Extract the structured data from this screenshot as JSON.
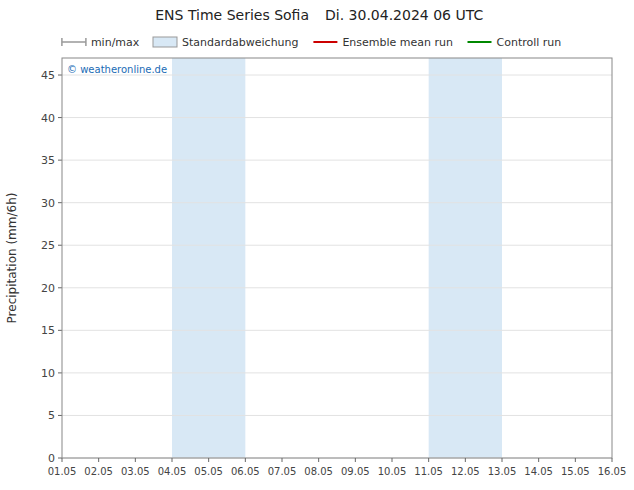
{
  "chart_data": {
    "type": "line",
    "title": "ENS Time Series Sofia",
    "subtitle": "Di. 30.04.2024 06 UTC",
    "y_label": "Precipitation (mm/6h)",
    "categories": [
      "01.05",
      "02.05",
      "03.05",
      "04.05",
      "05.05",
      "06.05",
      "07.05",
      "08.05",
      "09.05",
      "10.05",
      "11.05",
      "12.05",
      "13.05",
      "14.05",
      "15.05",
      "16.05"
    ],
    "xlim": [
      0,
      15
    ],
    "ylim": [
      0,
      47
    ],
    "yticks": [
      0,
      5,
      10,
      15,
      20,
      25,
      30,
      35,
      40,
      45
    ],
    "grid": true,
    "legend": "top",
    "shaded_regions": [
      {
        "x0": 3,
        "x1": 5,
        "color": "#d8e8f5"
      },
      {
        "x0": 10,
        "x1": 12,
        "color": "#d8e8f5"
      }
    ],
    "annotations": [
      {
        "text": "© weatheronline.de",
        "color": "#1a6bb5"
      }
    ],
    "series": [
      {
        "name": "min/max",
        "type": "range",
        "color": "#999999",
        "values": [
          null,
          null,
          null,
          null,
          null,
          null,
          null,
          null,
          null,
          null,
          null,
          null,
          null,
          null,
          null,
          null
        ]
      },
      {
        "name": "Standardabweichung",
        "type": "area",
        "color": "#d8e8f5",
        "values": [
          null,
          null,
          null,
          null,
          null,
          null,
          null,
          null,
          null,
          null,
          null,
          null,
          null,
          null,
          null,
          null
        ]
      },
      {
        "name": "Ensemble mean run",
        "type": "line",
        "color": "#cc0000",
        "values": [
          null,
          null,
          null,
          null,
          null,
          null,
          null,
          null,
          null,
          null,
          null,
          null,
          null,
          null,
          null,
          null
        ]
      },
      {
        "name": "Controll run",
        "type": "line",
        "color": "#008800",
        "values": [
          null,
          null,
          null,
          null,
          null,
          null,
          null,
          null,
          null,
          null,
          null,
          null,
          null,
          null,
          null,
          null
        ]
      }
    ]
  }
}
